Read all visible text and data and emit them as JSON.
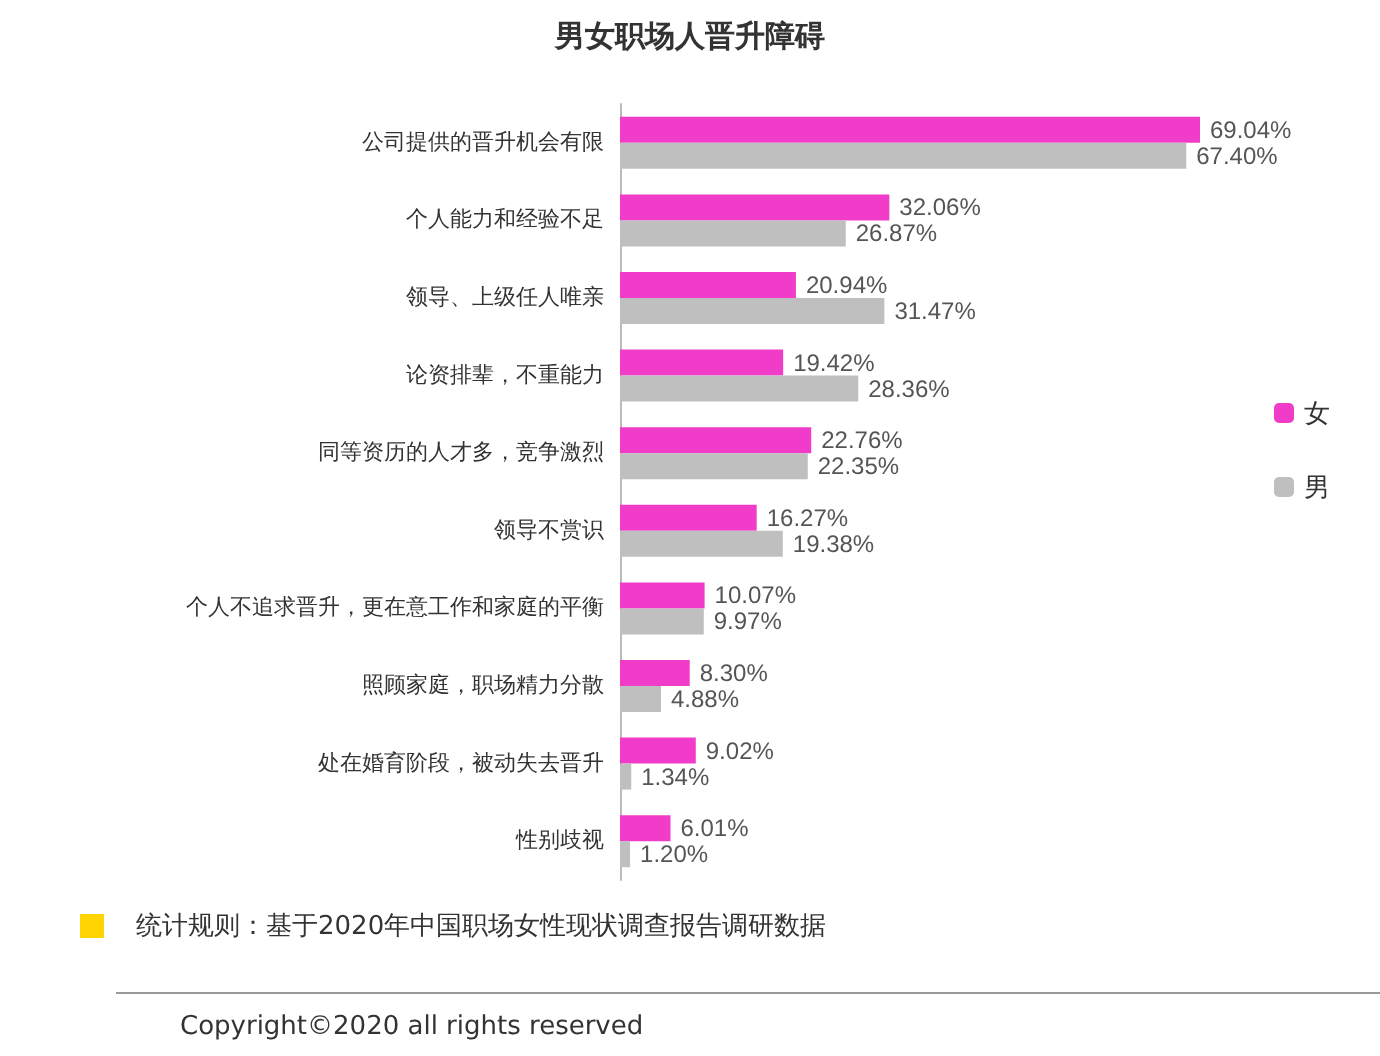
{
  "chart_data": {
    "type": "bar",
    "orientation": "horizontal",
    "title": "男女职场人晋升障碍",
    "categories": [
      "公司提供的晋升机会有限",
      "个人能力和经验不足",
      "领导、上级任人唯亲",
      "论资排辈，不重能力",
      "同等资历的人才多，竞争激烈",
      "领导不赏识",
      "个人不追求晋升，更在意工作和家庭的平衡",
      "照顾家庭，职场精力分散",
      "处在婚育阶段，被动失去晋升",
      "性别歧视"
    ],
    "series": [
      {
        "name": "女",
        "color": "#f03cc8",
        "values": [
          69.04,
          32.06,
          20.94,
          19.42,
          22.76,
          16.27,
          10.07,
          8.3,
          9.02,
          6.01
        ],
        "value_labels": [
          "69.04%",
          "32.06%",
          "20.94%",
          "19.42%",
          "22.76%",
          "16.27%",
          "10.07%",
          "8.30%",
          "9.02%",
          "6.01%"
        ]
      },
      {
        "name": "男",
        "color": "#bfbfbf",
        "values": [
          67.4,
          26.87,
          31.47,
          28.36,
          22.35,
          19.38,
          9.97,
          4.88,
          1.34,
          1.2
        ],
        "value_labels": [
          "67.40%",
          "26.87%",
          "31.47%",
          "28.36%",
          "22.35%",
          "19.38%",
          "9.97%",
          "4.88%",
          "1.34%",
          "1.20%"
        ]
      }
    ],
    "legend": "right",
    "annotations": [
      "统计规则：基于2020年中国职场女性现状调查报告调研数据",
      "Copyright©2020 all rights reserved"
    ]
  }
}
